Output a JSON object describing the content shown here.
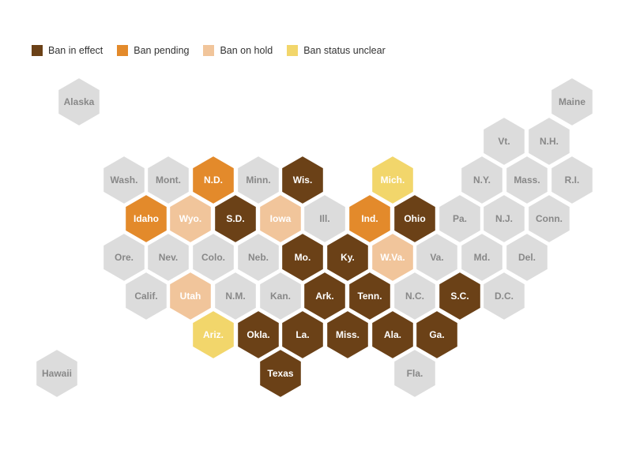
{
  "legend": [
    {
      "key": "in_effect",
      "label": "Ban in effect",
      "color": "#6b4117"
    },
    {
      "key": "pending",
      "label": "Ban pending",
      "color": "#e38a2b"
    },
    {
      "key": "on_hold",
      "label": "Ban on hold",
      "color": "#f1c59b"
    },
    {
      "key": "unclear",
      "label": "Ban status unclear",
      "color": "#f2d66b"
    }
  ],
  "default_color": "#dcdcdc",
  "label_colors": {
    "dark": "#ffffff",
    "light": "#888888"
  },
  "states": [
    {
      "abbr": "Alaska",
      "status": "none"
    },
    {
      "abbr": "Maine",
      "status": "none"
    },
    {
      "abbr": "Vt.",
      "status": "none"
    },
    {
      "abbr": "N.H.",
      "status": "none"
    },
    {
      "abbr": "Wash.",
      "status": "none"
    },
    {
      "abbr": "Mont.",
      "status": "none"
    },
    {
      "abbr": "N.D.",
      "status": "pending"
    },
    {
      "abbr": "Minn.",
      "status": "none"
    },
    {
      "abbr": "Wis.",
      "status": "in_effect"
    },
    {
      "abbr": "Mich.",
      "status": "unclear"
    },
    {
      "abbr": "N.Y.",
      "status": "none"
    },
    {
      "abbr": "Mass.",
      "status": "none"
    },
    {
      "abbr": "R.I.",
      "status": "none"
    },
    {
      "abbr": "Idaho",
      "status": "pending"
    },
    {
      "abbr": "Wyo.",
      "status": "on_hold"
    },
    {
      "abbr": "S.D.",
      "status": "in_effect"
    },
    {
      "abbr": "Iowa",
      "status": "on_hold"
    },
    {
      "abbr": "Ill.",
      "status": "none"
    },
    {
      "abbr": "Ind.",
      "status": "pending"
    },
    {
      "abbr": "Ohio",
      "status": "in_effect"
    },
    {
      "abbr": "Pa.",
      "status": "none"
    },
    {
      "abbr": "N.J.",
      "status": "none"
    },
    {
      "abbr": "Conn.",
      "status": "none"
    },
    {
      "abbr": "Ore.",
      "status": "none"
    },
    {
      "abbr": "Nev.",
      "status": "none"
    },
    {
      "abbr": "Colo.",
      "status": "none"
    },
    {
      "abbr": "Neb.",
      "status": "none"
    },
    {
      "abbr": "Mo.",
      "status": "in_effect"
    },
    {
      "abbr": "Ky.",
      "status": "in_effect"
    },
    {
      "abbr": "W.Va.",
      "status": "on_hold"
    },
    {
      "abbr": "Va.",
      "status": "none"
    },
    {
      "abbr": "Md.",
      "status": "none"
    },
    {
      "abbr": "Del.",
      "status": "none"
    },
    {
      "abbr": "Calif.",
      "status": "none"
    },
    {
      "abbr": "Utah",
      "status": "on_hold"
    },
    {
      "abbr": "N.M.",
      "status": "none"
    },
    {
      "abbr": "Kan.",
      "status": "none"
    },
    {
      "abbr": "Ark.",
      "status": "in_effect"
    },
    {
      "abbr": "Tenn.",
      "status": "in_effect"
    },
    {
      "abbr": "N.C.",
      "status": "none"
    },
    {
      "abbr": "S.C.",
      "status": "in_effect"
    },
    {
      "abbr": "D.C.",
      "status": "none"
    },
    {
      "abbr": "Ariz.",
      "status": "unclear"
    },
    {
      "abbr": "Okla.",
      "status": "in_effect"
    },
    {
      "abbr": "La.",
      "status": "in_effect"
    },
    {
      "abbr": "Miss.",
      "status": "in_effect"
    },
    {
      "abbr": "Ala.",
      "status": "in_effect"
    },
    {
      "abbr": "Ga.",
      "status": "in_effect"
    },
    {
      "abbr": "Hawaii",
      "status": "none"
    },
    {
      "abbr": "Texas",
      "status": "in_effect"
    },
    {
      "abbr": "Fla.",
      "status": "none"
    }
  ]
}
